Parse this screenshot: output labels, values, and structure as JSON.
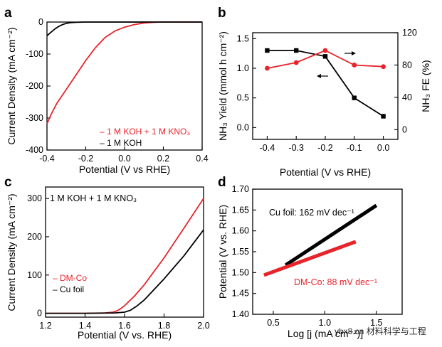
{
  "colors": {
    "red": "#e8242b",
    "black": "#000000"
  },
  "watermark": "ybx8.cn 材料科学与工程",
  "chart_data": [
    {
      "panel": "a",
      "type": "line",
      "xlabel": "Potential (V vs RHE)",
      "ylabel": "Current Density (mA cm⁻²)",
      "xlim": [
        -0.4,
        0.4
      ],
      "ylim": [
        -400,
        0
      ],
      "xticks": [
        "-0.4",
        "-0.2",
        "0.0",
        "0.2",
        "0.4"
      ],
      "yticks": [
        "0",
        "-100",
        "-200",
        "-300",
        "-400"
      ],
      "legend": [
        "– 1 M KOH + 1 M KNO₃",
        "– 1 M KOH"
      ],
      "series": [
        {
          "name": "1 M KOH + 1 M KNO3",
          "color": "#e8242b",
          "x": [
            -0.4,
            -0.38,
            -0.35,
            -0.3,
            -0.25,
            -0.2,
            -0.15,
            -0.1,
            -0.05,
            0.0,
            0.05,
            0.1,
            0.15,
            0.2,
            0.3,
            0.4
          ],
          "y": [
            -318,
            -290,
            -255,
            -210,
            -165,
            -120,
            -80,
            -48,
            -28,
            -16,
            -8,
            -3,
            -1,
            0,
            0,
            0
          ]
        },
        {
          "name": "1 M KOH",
          "color": "#000000",
          "x": [
            -0.4,
            -0.38,
            -0.36,
            -0.34,
            -0.32,
            -0.3,
            -0.28,
            -0.25,
            -0.2,
            -0.1,
            0.0,
            0.2,
            0.4
          ],
          "y": [
            -43,
            -32,
            -22,
            -14,
            -8,
            -4,
            -2,
            -1,
            0,
            0,
            0,
            0,
            0
          ]
        }
      ]
    },
    {
      "panel": "b",
      "type": "line",
      "xlabel": "Potential (V vs RHE)",
      "ylabel": "NH₃ Yield (mmol h cm⁻²)",
      "ylabel_right": "NH₃ FE (%)",
      "categories": [
        "-0.4",
        "-0.3",
        "-0.2",
        "-0.1",
        "0.0"
      ],
      "x": [
        -0.4,
        -0.3,
        -0.2,
        -0.1,
        0.0
      ],
      "xlim": [
        -0.45,
        0.05
      ],
      "ylim": [
        -0.2,
        1.6
      ],
      "ylim_right": [
        -12,
        120
      ],
      "yticks": [
        "0.0",
        "0.5",
        "1.0",
        "1.5"
      ],
      "yticks_right": [
        "0",
        "40",
        "80",
        "120"
      ],
      "series": [
        {
          "name": "NH3 Yield",
          "axis": "left",
          "color": "#000000",
          "marker": "square",
          "values": [
            1.3,
            1.3,
            1.2,
            0.5,
            0.19
          ]
        },
        {
          "name": "NH3 FE",
          "axis": "right",
          "color": "#e8242b",
          "marker": "circle",
          "values": [
            76,
            83,
            98,
            80,
            78
          ]
        }
      ]
    },
    {
      "panel": "c",
      "type": "line",
      "xlabel": "Potential (V vs. RHE)",
      "ylabel": "Current Density (mA cm⁻²)",
      "xlim": [
        1.2,
        2.0
      ],
      "ylim": [
        -10,
        330
      ],
      "xticks": [
        "1.2",
        "1.4",
        "1.6",
        "1.8",
        "2.0"
      ],
      "yticks": [
        "0",
        "100",
        "200",
        "300"
      ],
      "title": "1 M KOH + 1 M KNO₃",
      "legend": [
        "– DM-Co",
        "– Cu foil"
      ],
      "series": [
        {
          "name": "DM-Co",
          "color": "#e8242b",
          "x": [
            1.2,
            1.4,
            1.5,
            1.54,
            1.56,
            1.58,
            1.6,
            1.65,
            1.7,
            1.8,
            1.9,
            2.0
          ],
          "y": [
            0,
            0,
            1,
            3,
            6,
            12,
            20,
            45,
            75,
            145,
            222,
            300
          ]
        },
        {
          "name": "Cu foil",
          "color": "#000000",
          "x": [
            1.2,
            1.4,
            1.55,
            1.6,
            1.63,
            1.66,
            1.7,
            1.8,
            1.9,
            2.0
          ],
          "y": [
            0,
            0,
            1,
            3,
            8,
            18,
            35,
            90,
            150,
            218
          ]
        }
      ]
    },
    {
      "panel": "d",
      "type": "line",
      "xlabel": "Log [j (mA cm⁻²)]",
      "ylabel": "Potential (V vs. RHE)",
      "xlim": [
        0.3,
        1.75
      ],
      "ylim": [
        1.4,
        1.7
      ],
      "xticks": [
        "0.5",
        "1.0",
        "1.5"
      ],
      "yticks": [
        "1.40",
        "1.45",
        "1.50",
        "1.55",
        "1.60",
        "1.65",
        "1.70"
      ],
      "annotations": [
        "Cu foil: 162 mV dec⁻¹",
        "DM-Co: 88 mV dec⁻¹"
      ],
      "series": [
        {
          "name": "Cu foil",
          "color": "#000000",
          "x": [
            0.62,
            1.5
          ],
          "y": [
            1.518,
            1.661
          ]
        },
        {
          "name": "DM-Co",
          "color": "#e8242b",
          "x": [
            0.41,
            1.3
          ],
          "y": [
            1.494,
            1.574
          ]
        }
      ]
    }
  ]
}
